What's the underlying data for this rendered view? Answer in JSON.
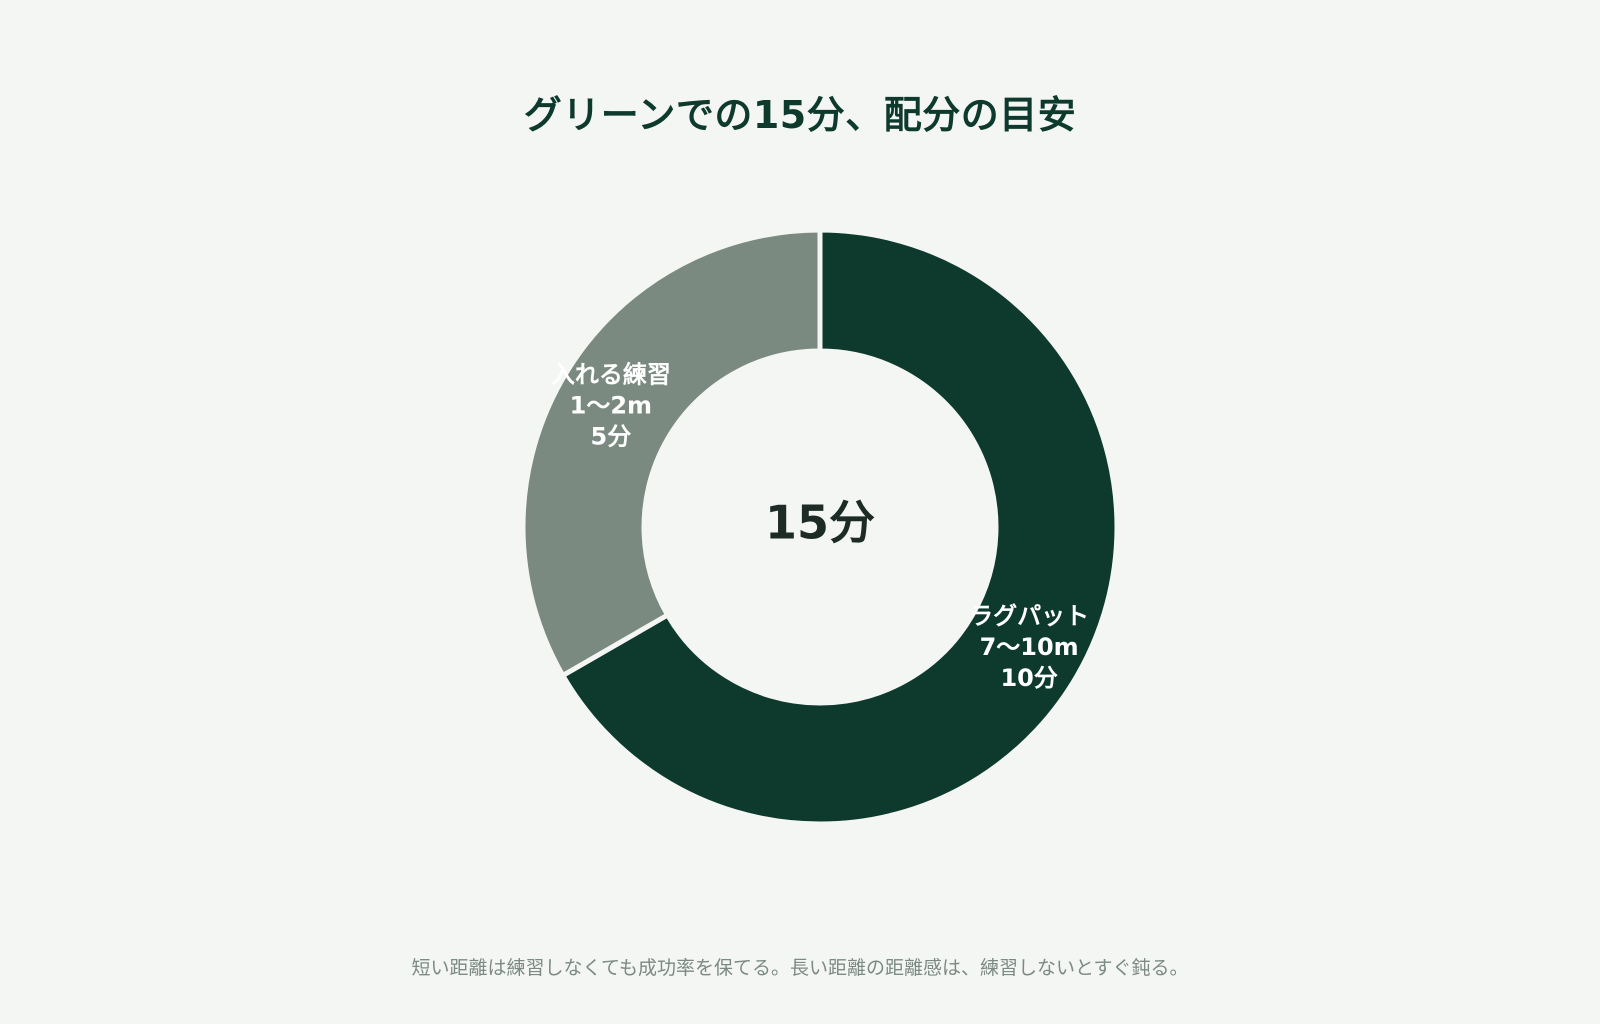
{
  "chart_data": {
    "type": "pie",
    "title": "グリーンでの15分、配分の目安",
    "center_label": "15分",
    "unit": "分",
    "total": 15,
    "slices": [
      {
        "name": "ラグパット",
        "range": "7〜10m",
        "value": 10,
        "value_label": "10分",
        "color": "#0e3a2e"
      },
      {
        "name": "入れる練習",
        "range": "1〜2m",
        "value": 5,
        "value_label": "5分",
        "color": "#7b8a81"
      }
    ]
  },
  "caption": "短い距離は練習しなくても成功率を保てる。長い距離の距離感は、練習しないとすぐ鈍る。"
}
